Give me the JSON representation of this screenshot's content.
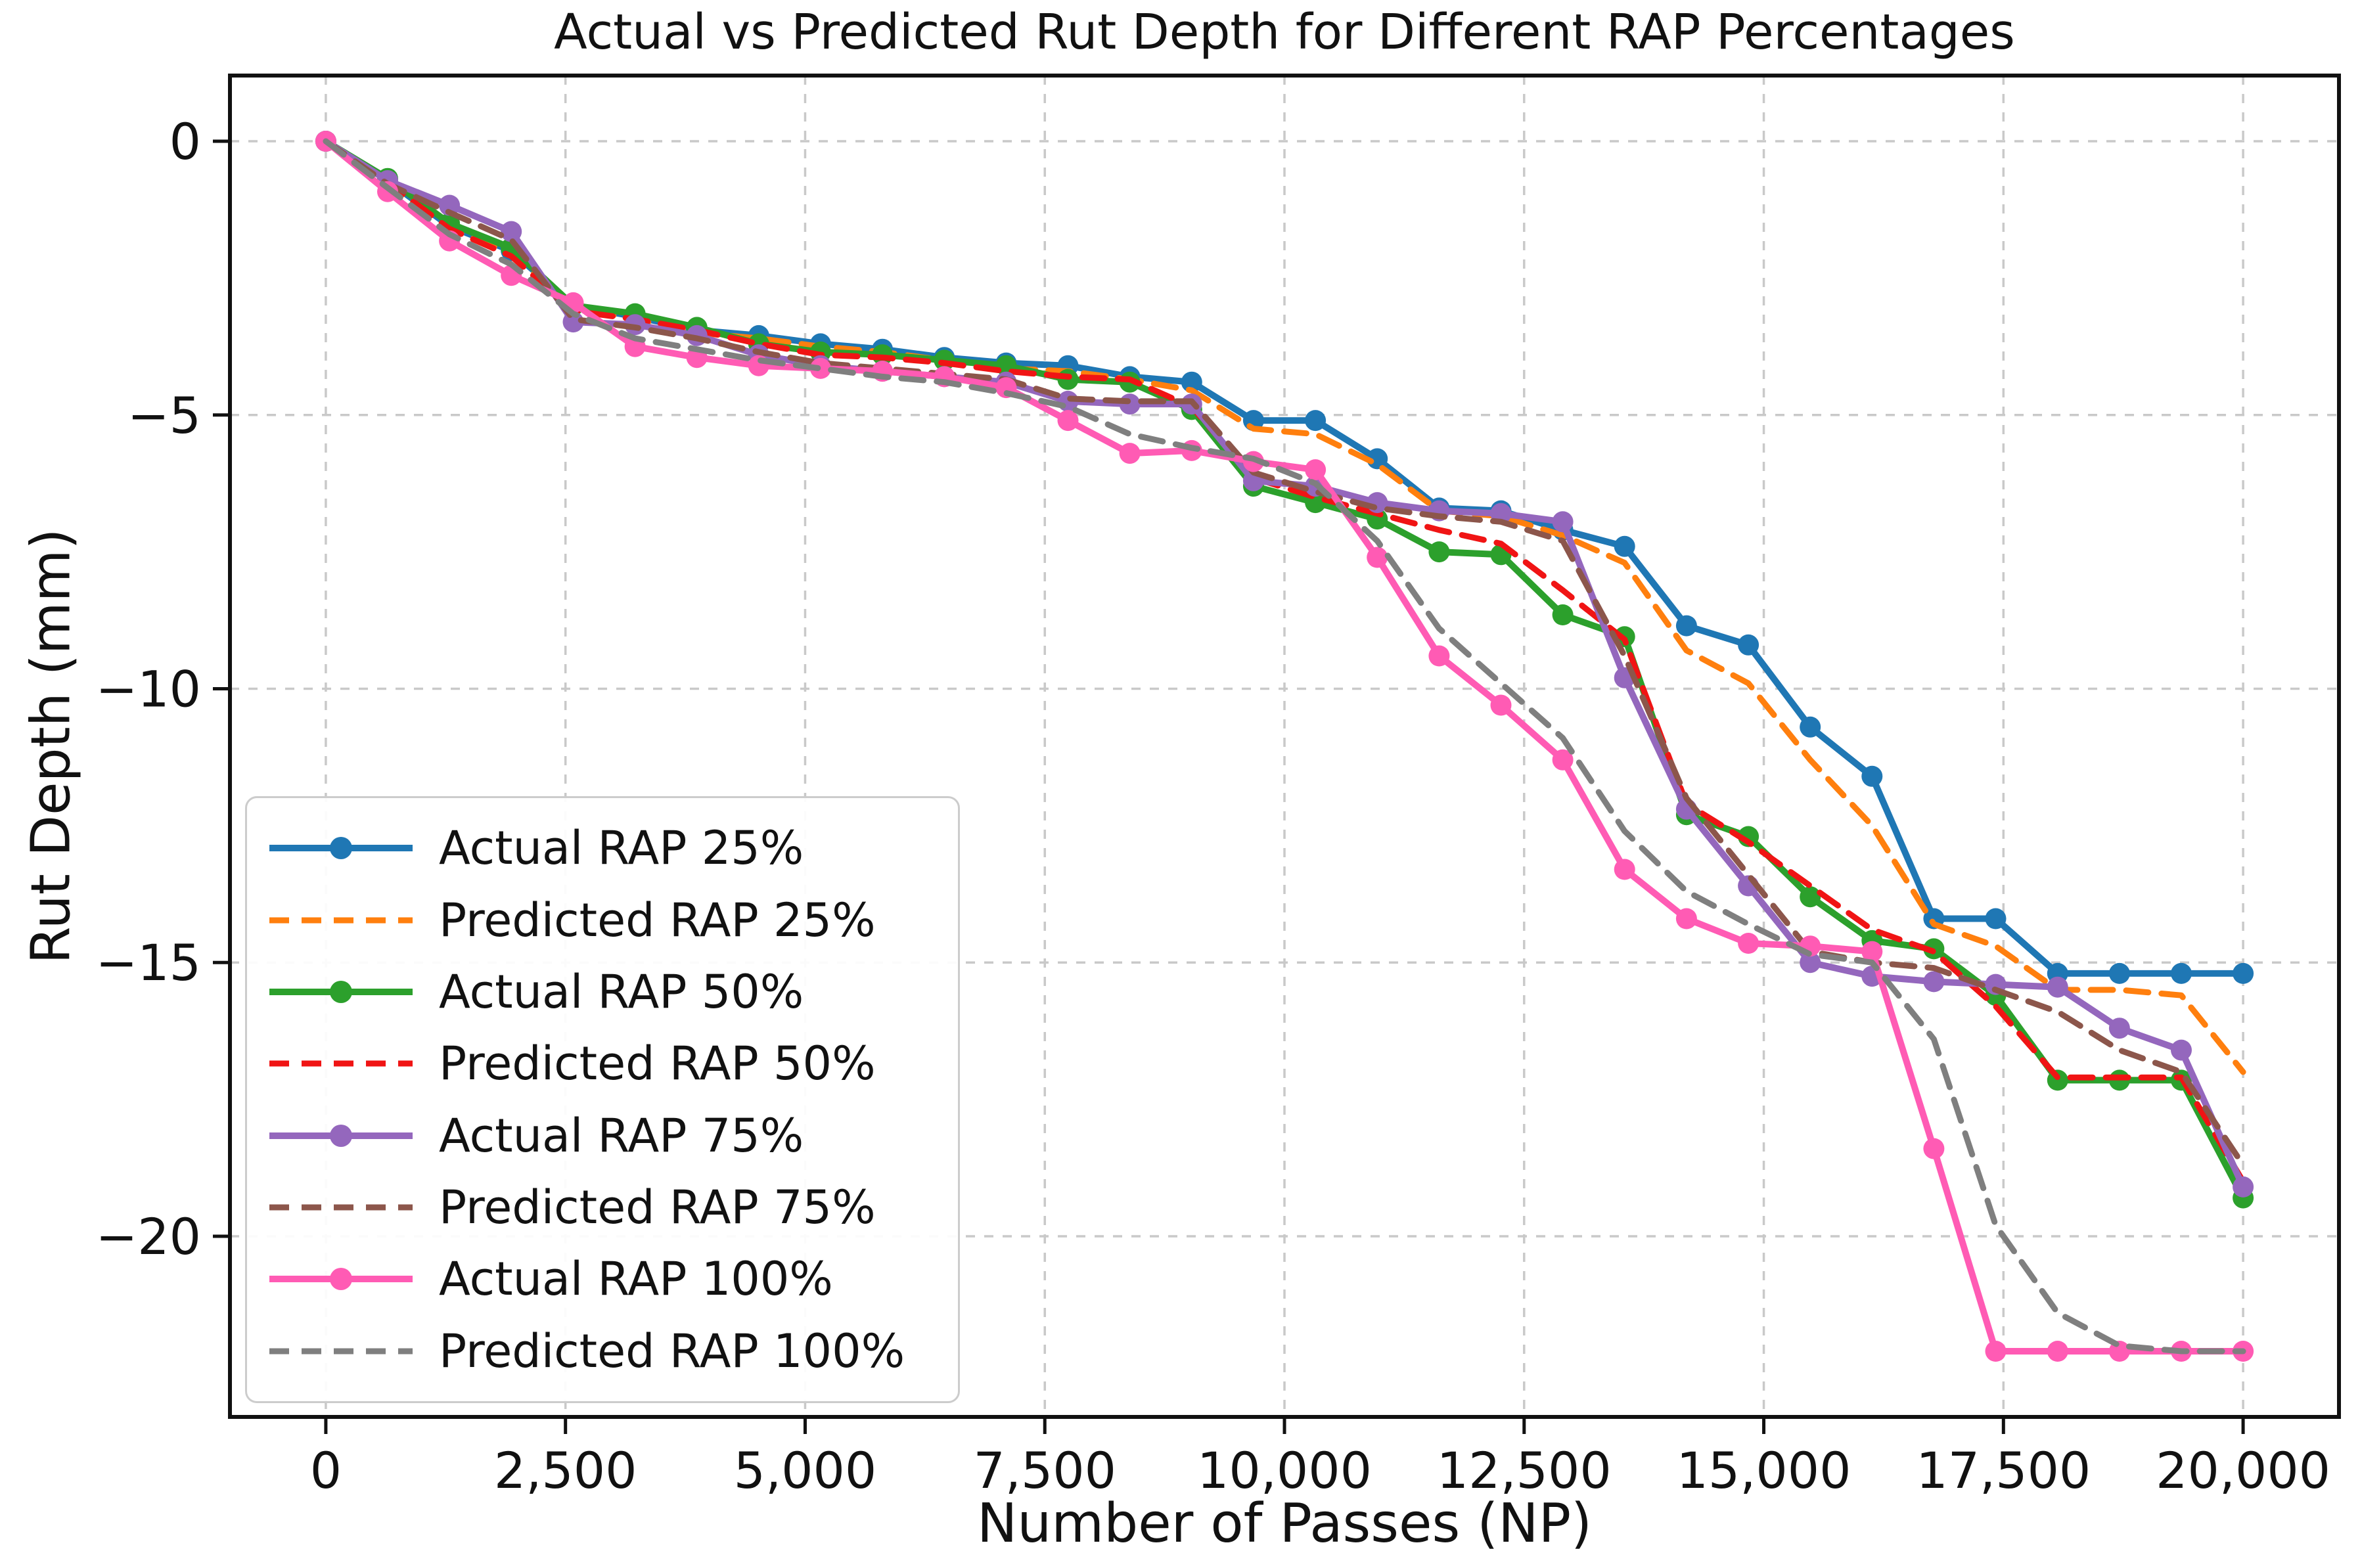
{
  "figure": {
    "title": "Actual vs Predicted Rut Depth for Different RAP Percentages",
    "xlabel": "Number of Passes (NP)",
    "ylabel": "Rut Depth (mm)",
    "background_color": "#ffffff"
  },
  "chart_data": {
    "type": "line",
    "title": "Actual vs Predicted Rut Depth for Different RAP Percentages",
    "xlabel": "Number of Passes (NP)",
    "ylabel": "Rut Depth (mm)",
    "grid": true,
    "legend_position": "lower left",
    "xlim": [
      -1000,
      21000
    ],
    "ylim": [
      -23.3,
      1.2
    ],
    "xticks": {
      "values": [
        0,
        2500,
        5000,
        7500,
        10000,
        12500,
        15000,
        17500,
        20000
      ],
      "labels": [
        "0",
        "2,500",
        "5,000",
        "7,500",
        "10,000",
        "12,500",
        "15,000",
        "17,500",
        "20,000"
      ]
    },
    "yticks": {
      "values": [
        0,
        -5,
        -10,
        -15,
        -20
      ],
      "labels": [
        "0",
        "−5",
        "−10",
        "−15",
        "−20"
      ]
    },
    "x": [
      0,
      645,
      1290,
      1935,
      2581,
      3226,
      3871,
      4516,
      5161,
      5806,
      6452,
      7097,
      7742,
      8387,
      9032,
      9677,
      10323,
      10968,
      11613,
      12258,
      12903,
      13548,
      14194,
      14839,
      15484,
      16129,
      16774,
      17419,
      18065,
      18710,
      19355,
      20000
    ],
    "series": [
      {
        "name": "Actual RAP 25%",
        "color": "#1f77b4",
        "style": "solid",
        "marker": true,
        "values": [
          0,
          -0.72,
          -1.55,
          -2.0,
          -3.0,
          -3.2,
          -3.45,
          -3.55,
          -3.7,
          -3.8,
          -3.95,
          -4.05,
          -4.1,
          -4.3,
          -4.4,
          -5.1,
          -5.1,
          -5.8,
          -6.7,
          -6.75,
          -7.1,
          -7.4,
          -8.85,
          -9.2,
          -10.7,
          -11.6,
          -14.2,
          -14.2,
          -15.2,
          -15.2,
          -15.2,
          -15.2
        ]
      },
      {
        "name": "Predicted RAP 25%",
        "color": "#ff7f0e",
        "style": "dashed",
        "marker": false,
        "values": [
          0,
          -0.78,
          -1.6,
          -2.05,
          -3.05,
          -3.25,
          -3.5,
          -3.6,
          -3.75,
          -3.85,
          -4.0,
          -4.15,
          -4.2,
          -4.35,
          -4.55,
          -5.25,
          -5.35,
          -5.9,
          -6.75,
          -6.85,
          -7.2,
          -7.7,
          -9.3,
          -9.9,
          -11.3,
          -12.5,
          -14.3,
          -14.7,
          -15.5,
          -15.5,
          -15.6,
          -17.0
        ]
      },
      {
        "name": "Actual RAP 50%",
        "color": "#2ca02c",
        "style": "solid",
        "marker": true,
        "values": [
          0,
          -0.68,
          -1.5,
          -1.95,
          -3.0,
          -3.15,
          -3.4,
          -3.7,
          -3.85,
          -3.9,
          -4.0,
          -4.1,
          -4.35,
          -4.4,
          -4.9,
          -6.3,
          -6.6,
          -6.9,
          -7.5,
          -7.55,
          -8.65,
          -9.05,
          -12.3,
          -12.7,
          -13.8,
          -14.6,
          -14.75,
          -15.6,
          -17.15,
          -17.15,
          -17.15,
          -19.3
        ]
      },
      {
        "name": "Predicted RAP 50%",
        "color": "#f01414",
        "style": "dashed",
        "marker": false,
        "values": [
          0,
          -0.75,
          -1.6,
          -2.1,
          -3.1,
          -3.25,
          -3.45,
          -3.7,
          -3.9,
          -3.95,
          -4.05,
          -4.2,
          -4.3,
          -4.35,
          -4.85,
          -6.15,
          -6.5,
          -6.8,
          -7.1,
          -7.35,
          -8.2,
          -9.1,
          -12.1,
          -12.8,
          -13.6,
          -14.4,
          -14.8,
          -15.8,
          -17.1,
          -17.1,
          -17.1,
          -19.0
        ]
      },
      {
        "name": "Actual RAP 75%",
        "color": "#9467bd",
        "style": "solid",
        "marker": true,
        "values": [
          0,
          -0.72,
          -1.17,
          -1.65,
          -3.3,
          -3.35,
          -3.55,
          -3.9,
          -4.1,
          -4.2,
          -4.3,
          -4.4,
          -4.75,
          -4.8,
          -4.8,
          -6.2,
          -6.3,
          -6.6,
          -6.75,
          -6.8,
          -6.95,
          -9.8,
          -12.2,
          -13.6,
          -15.0,
          -15.25,
          -15.35,
          -15.4,
          -15.45,
          -16.2,
          -16.6,
          -19.1
        ]
      },
      {
        "name": "Predicted RAP 75%",
        "color": "#8c564b",
        "style": "dashed",
        "marker": false,
        "values": [
          0,
          -0.78,
          -1.3,
          -1.8,
          -3.25,
          -3.4,
          -3.6,
          -3.85,
          -4.05,
          -4.15,
          -4.25,
          -4.35,
          -4.7,
          -4.75,
          -4.75,
          -6.05,
          -6.4,
          -6.7,
          -6.85,
          -6.95,
          -7.3,
          -9.4,
          -12.0,
          -13.4,
          -14.8,
          -15.0,
          -15.1,
          -15.5,
          -15.9,
          -16.6,
          -17.0,
          -18.7
        ]
      },
      {
        "name": "Actual RAP 100%",
        "color": "#ff5bb4",
        "style": "solid",
        "marker": true,
        "values": [
          0,
          -0.92,
          -1.82,
          -2.45,
          -2.95,
          -3.75,
          -3.95,
          -4.1,
          -4.15,
          -4.2,
          -4.3,
          -4.5,
          -5.1,
          -5.7,
          -5.65,
          -5.85,
          -6.0,
          -7.6,
          -9.4,
          -10.3,
          -11.3,
          -13.3,
          -14.2,
          -14.65,
          -14.7,
          -14.8,
          -18.4,
          -22.1,
          -22.1,
          -22.1,
          -22.1,
          -22.1
        ]
      },
      {
        "name": "Predicted RAP 100%",
        "color": "#7f7f7f",
        "style": "dashed",
        "marker": false,
        "values": [
          0,
          -0.85,
          -1.7,
          -2.25,
          -3.15,
          -3.6,
          -3.8,
          -4.0,
          -4.15,
          -4.3,
          -4.4,
          -4.6,
          -4.85,
          -5.35,
          -5.6,
          -5.8,
          -6.25,
          -7.3,
          -8.9,
          -9.9,
          -10.9,
          -12.6,
          -13.7,
          -14.3,
          -14.85,
          -15.0,
          -16.4,
          -19.8,
          -21.4,
          -22.0,
          -22.1,
          -22.1
        ]
      }
    ]
  }
}
